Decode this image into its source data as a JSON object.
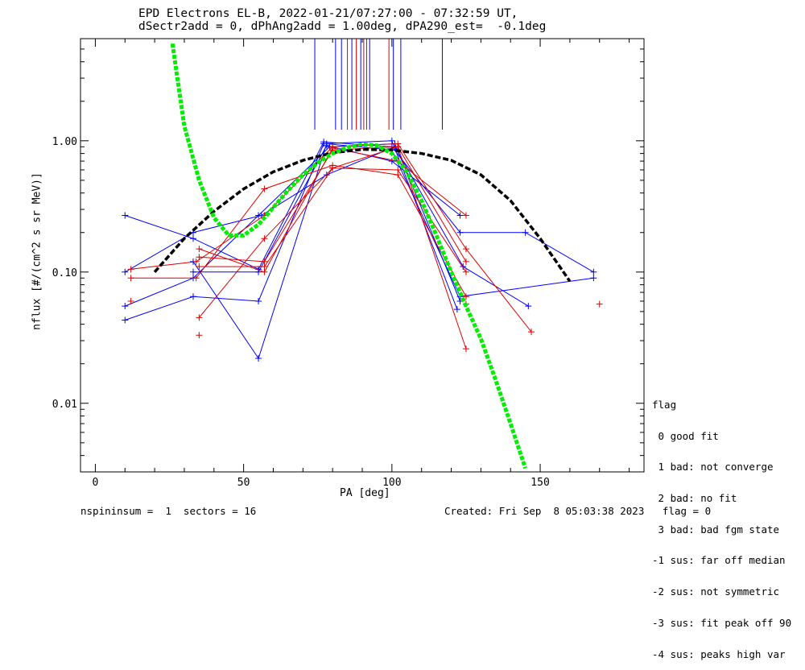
{
  "title_line1": "EPD Electrons EL-B, 2022-01-21/07:27:00 - 07:32:59 UT,",
  "title_line2": "dSectr2add = 0, dPhAng2add = 1.00deg, dPA290_est=  -0.1deg",
  "footer_left": "nspininsum =  1  sectors = 16",
  "footer_right": "Created: Fri Sep  8 05:03:38 2023   flag = 0",
  "flag_legend": {
    "title": "flag",
    "items": [
      " 0 good fit",
      " 1 bad: not converge",
      " 2 bad: no fit",
      " 3 bad: bad fgm state",
      "-1 sus: far off median",
      "-2 sus: not symmetric",
      "-3 sus: fit peak off 90",
      "-4 sus: peaks high var"
    ]
  },
  "chart_data": {
    "type": "line",
    "xlabel": "PA [deg]",
    "ylabel": "nflux [#/(cm^2 s sr MeV)]",
    "xlim": [
      -5,
      185
    ],
    "ylim": [
      0.003,
      6
    ],
    "yscale": "log",
    "xticks": [
      0,
      50,
      100,
      150
    ],
    "xtick_labels": [
      "0",
      "50",
      "100",
      "150"
    ],
    "yticks": [
      0.01,
      0.1,
      1.0
    ],
    "ytick_labels": [
      "0.01",
      "0.10",
      "1.00"
    ],
    "colors": {
      "red": "#e00000",
      "blue": "#0000ff",
      "black": "#000000",
      "green": "#00ee00"
    },
    "vertical_markers": [
      {
        "x": 74,
        "color": "blue"
      },
      {
        "x": 81,
        "color": "blue"
      },
      {
        "x": 83,
        "color": "blue"
      },
      {
        "x": 85,
        "color": "red"
      },
      {
        "x": 86.5,
        "color": "blue"
      },
      {
        "x": 88,
        "color": "red"
      },
      {
        "x": 89.5,
        "color": "blue"
      },
      {
        "x": 90.5,
        "color": "red"
      },
      {
        "x": 91.5,
        "color": "red"
      },
      {
        "x": 92.5,
        "color": "blue"
      },
      {
        "x": 99,
        "color": "red"
      },
      {
        "x": 100.5,
        "color": "blue"
      },
      {
        "x": 103,
        "color": "blue"
      },
      {
        "x": 117,
        "color": "blue"
      }
    ],
    "series": [
      {
        "color": "blue",
        "points": [
          [
            10,
            0.27
          ],
          [
            33,
            0.18
          ],
          [
            55,
            0.105
          ],
          [
            77,
            0.98
          ],
          [
            100,
            0.9
          ],
          [
            123,
            0.2
          ],
          [
            145,
            0.2
          ],
          [
            168,
            0.1
          ]
        ]
      },
      {
        "color": "blue",
        "points": [
          [
            10,
            0.1
          ],
          [
            33,
            0.2
          ],
          [
            56,
            0.27
          ],
          [
            78,
            0.55
          ],
          [
            101,
            0.9
          ],
          [
            124,
            0.11
          ],
          [
            146,
            0.055
          ]
        ]
      },
      {
        "color": "blue",
        "points": [
          [
            10,
            0.055
          ],
          [
            33,
            0.09
          ],
          [
            55,
            0.27
          ],
          [
            79,
            0.9
          ],
          [
            101,
            0.95
          ],
          [
            123,
            0.06
          ]
        ]
      },
      {
        "color": "blue",
        "points": [
          [
            10,
            0.043
          ],
          [
            33,
            0.065
          ],
          [
            55,
            0.06
          ],
          [
            77,
            0.95
          ],
          [
            100,
            1.0
          ],
          [
            122,
            0.052
          ]
        ]
      },
      {
        "color": "blue",
        "points": [
          [
            33,
            0.12
          ],
          [
            55,
            0.022
          ],
          [
            78,
            0.95
          ],
          [
            100,
            0.85
          ],
          [
            123,
            0.065
          ],
          [
            168,
            0.09
          ]
        ]
      },
      {
        "color": "blue",
        "points": [
          [
            33,
            0.1
          ],
          [
            55,
            0.1
          ],
          [
            78,
            0.92
          ],
          [
            100,
            0.7
          ],
          [
            123,
            0.27
          ]
        ]
      },
      {
        "color": "red",
        "points": [
          [
            12,
            0.105
          ],
          [
            34,
            0.12
          ],
          [
            57,
            0.27
          ],
          [
            80,
            0.9
          ],
          [
            102,
            0.95
          ],
          [
            125,
            0.15
          ],
          [
            147,
            0.035
          ]
        ]
      },
      {
        "color": "red",
        "points": [
          [
            12,
            0.09
          ],
          [
            34,
            0.09
          ],
          [
            57,
            0.43
          ],
          [
            80,
            0.65
          ],
          [
            102,
            0.55
          ],
          [
            125,
            0.065
          ]
        ]
      },
      {
        "color": "red",
        "points": [
          [
            35,
            0.045
          ],
          [
            57,
            0.18
          ],
          [
            80,
            0.62
          ],
          [
            102,
            0.9
          ],
          [
            125,
            0.026
          ]
        ]
      },
      {
        "color": "red",
        "points": [
          [
            35,
            0.15
          ],
          [
            57,
            0.1
          ],
          [
            80,
            0.88
          ],
          [
            102,
            0.7
          ],
          [
            125,
            0.27
          ]
        ]
      },
      {
        "color": "red",
        "points": [
          [
            35,
            0.13
          ],
          [
            57,
            0.12
          ],
          [
            80,
            0.85
          ],
          [
            102,
            0.9
          ],
          [
            125,
            0.12
          ]
        ]
      },
      {
        "color": "red",
        "points": [
          [
            35,
            0.11
          ],
          [
            57,
            0.11
          ],
          [
            80,
            0.62
          ],
          [
            102,
            0.6
          ],
          [
            125,
            0.1
          ]
        ]
      },
      {
        "color": "red",
        "points": [
          [
            12,
            0.06
          ]
        ]
      },
      {
        "color": "red",
        "points": [
          [
            35,
            0.033
          ]
        ]
      },
      {
        "color": "red",
        "points": [
          [
            170,
            0.057
          ]
        ]
      },
      {
        "color": "red",
        "points": [
          [
            125,
            0.057
          ]
        ]
      }
    ],
    "fits": [
      {
        "color": "black",
        "dashed": true,
        "points": [
          [
            20,
            0.1
          ],
          [
            30,
            0.18
          ],
          [
            40,
            0.29
          ],
          [
            50,
            0.43
          ],
          [
            60,
            0.58
          ],
          [
            70,
            0.71
          ],
          [
            80,
            0.81
          ],
          [
            90,
            0.86
          ],
          [
            100,
            0.85
          ],
          [
            110,
            0.8
          ],
          [
            120,
            0.71
          ],
          [
            130,
            0.55
          ],
          [
            140,
            0.35
          ],
          [
            150,
            0.18
          ],
          [
            160,
            0.085
          ]
        ]
      },
      {
        "color": "green",
        "dashed": true,
        "points": [
          [
            26,
            5.5
          ],
          [
            30,
            1.3
          ],
          [
            35,
            0.5
          ],
          [
            40,
            0.26
          ],
          [
            45,
            0.19
          ],
          [
            50,
            0.19
          ],
          [
            55,
            0.23
          ],
          [
            60,
            0.31
          ],
          [
            65,
            0.42
          ],
          [
            70,
            0.55
          ],
          [
            75,
            0.68
          ],
          [
            80,
            0.8
          ],
          [
            85,
            0.89
          ],
          [
            90,
            0.94
          ],
          [
            95,
            0.92
          ],
          [
            100,
            0.8
          ],
          [
            105,
            0.58
          ],
          [
            110,
            0.35
          ],
          [
            115,
            0.19
          ],
          [
            120,
            0.1
          ],
          [
            125,
            0.055
          ],
          [
            130,
            0.031
          ],
          [
            135,
            0.015
          ],
          [
            140,
            0.007
          ],
          [
            145,
            0.0032
          ]
        ]
      }
    ]
  }
}
